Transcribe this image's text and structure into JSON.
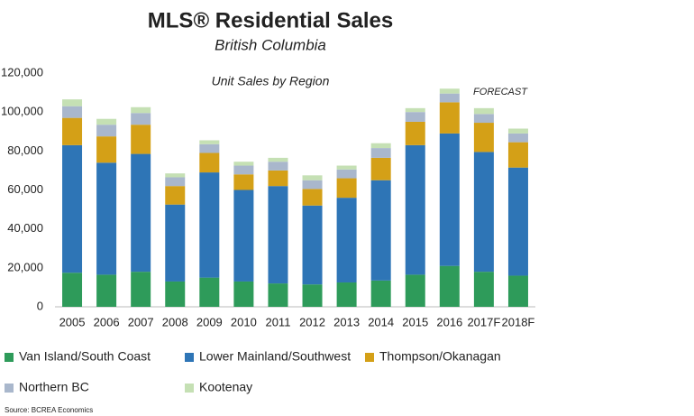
{
  "chart_data": {
    "type": "stacked_bar",
    "title": "MLS® Residential Sales",
    "subtitle": "British Columbia",
    "chart_title": "Unit Sales by Region",
    "annotation": "FORECAST",
    "source": "Source: BCREA Economics",
    "categories": [
      "2005",
      "2006",
      "2007",
      "2008",
      "2009",
      "2010",
      "2011",
      "2012",
      "2013",
      "2014",
      "2015",
      "2016",
      "2017F",
      "2018F"
    ],
    "series": [
      {
        "name": "Van Island/South Coast",
        "color": "#2e9b5a",
        "values": [
          17500,
          16500,
          18000,
          13000,
          15000,
          13000,
          12000,
          11500,
          12500,
          13500,
          16500,
          21000,
          18000,
          16000
        ]
      },
      {
        "name": "Lower Mainland/Southwest",
        "color": "#2e75b6",
        "values": [
          65500,
          57500,
          60500,
          39500,
          54000,
          47000,
          50000,
          40500,
          43500,
          51500,
          66500,
          68000,
          61500,
          55500
        ]
      },
      {
        "name": "Thompson/Okanagan",
        "color": "#d4a017",
        "values": [
          14000,
          13500,
          15000,
          9500,
          10000,
          8000,
          8000,
          8500,
          10000,
          11500,
          12000,
          16000,
          15000,
          13000
        ]
      },
      {
        "name": "Northern BC",
        "color": "#a9b7cc",
        "values": [
          6000,
          6000,
          6000,
          4500,
          4500,
          4500,
          4500,
          4500,
          4500,
          5000,
          5000,
          4500,
          4500,
          4500
        ]
      },
      {
        "name": "Kootenay",
        "color": "#c5e0b4",
        "values": [
          3500,
          3000,
          3000,
          2000,
          2000,
          2000,
          2000,
          2500,
          2000,
          2500,
          2000,
          2500,
          3000,
          2500
        ]
      }
    ],
    "ylim": [
      0,
      120000
    ],
    "yticks": [
      0,
      {
        "value": 20000,
        "label": "20,000"
      },
      {
        "value": 40000,
        "label": "40,000"
      },
      {
        "value": 60000,
        "label": "60,000"
      },
      {
        "value": 80000,
        "label": "80,000"
      },
      {
        "value": 100000,
        "label": "100,000"
      },
      {
        "value": 120000,
        "label": "120,000"
      }
    ],
    "grid": false
  }
}
